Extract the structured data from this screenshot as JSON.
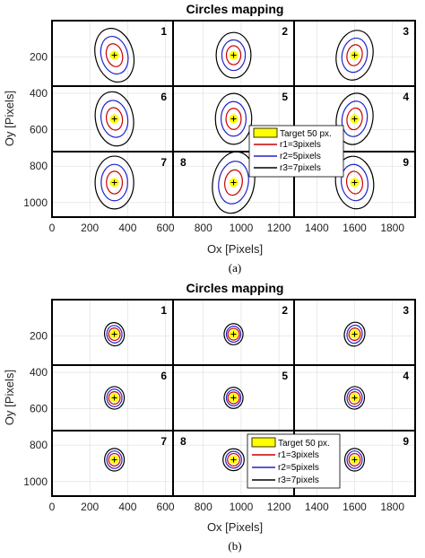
{
  "chart_data": [
    {
      "type": "scatter",
      "panel_label": "(a)",
      "title": "Circles mapping",
      "xlabel": "Ox [Pixels]",
      "ylabel": "Oy [Pixels]",
      "xlim": [
        0,
        1920
      ],
      "ylim": [
        1080,
        0
      ],
      "xticks": [
        "0",
        "200",
        "400",
        "600",
        "800",
        "1000",
        "1200",
        "1400",
        "1600",
        "1800"
      ],
      "yticks": [
        "200",
        "400",
        "600",
        "800",
        "1000"
      ],
      "grid": true,
      "grid_lines_x": [
        640,
        1280
      ],
      "grid_lines_y": [
        360,
        720
      ],
      "cell_labels": [
        "1",
        "2",
        "3",
        "6",
        "5",
        "4",
        "7",
        "8",
        "9"
      ],
      "legend": {
        "placement": "center-right",
        "entries": [
          {
            "name": "Target 50 px.",
            "color": "#ffff00",
            "kind": "fill"
          },
          {
            "name": "r1=3pixels",
            "color": "#cc0000",
            "kind": "line"
          },
          {
            "name": "r2=5pixels",
            "color": "#2222cc",
            "kind": "line"
          },
          {
            "name": "r3=7pixels",
            "color": "#000000",
            "kind": "line"
          }
        ]
      },
      "targets": [
        {
          "x": 330,
          "y": 190,
          "rx1": 42,
          "ry1": 64,
          "rx2": 70,
          "ry2": 105,
          "rx3": 100,
          "ry3": 150,
          "tilt": -15
        },
        {
          "x": 960,
          "y": 190,
          "rx1": 38,
          "ry1": 52,
          "rx2": 62,
          "ry2": 84,
          "rx3": 92,
          "ry3": 125,
          "tilt": 0
        },
        {
          "x": 1600,
          "y": 190,
          "rx1": 40,
          "ry1": 58,
          "rx2": 66,
          "ry2": 95,
          "rx3": 96,
          "ry3": 138,
          "tilt": 12
        },
        {
          "x": 330,
          "y": 540,
          "rx1": 42,
          "ry1": 62,
          "rx2": 70,
          "ry2": 102,
          "rx3": 100,
          "ry3": 150,
          "tilt": -10
        },
        {
          "x": 960,
          "y": 540,
          "rx1": 40,
          "ry1": 58,
          "rx2": 66,
          "ry2": 95,
          "rx3": 96,
          "ry3": 140,
          "tilt": 0
        },
        {
          "x": 1600,
          "y": 540,
          "rx1": 40,
          "ry1": 60,
          "rx2": 66,
          "ry2": 98,
          "rx3": 96,
          "ry3": 142,
          "tilt": 10
        },
        {
          "x": 330,
          "y": 890,
          "rx1": 42,
          "ry1": 62,
          "rx2": 70,
          "ry2": 100,
          "rx3": 102,
          "ry3": 145,
          "tilt": 0
        },
        {
          "x": 960,
          "y": 890,
          "rx1": 46,
          "ry1": 70,
          "rx2": 78,
          "ry2": 118,
          "rx3": 110,
          "ry3": 170,
          "tilt": 10
        },
        {
          "x": 1600,
          "y": 890,
          "rx1": 42,
          "ry1": 62,
          "rx2": 70,
          "ry2": 100,
          "rx3": 100,
          "ry3": 145,
          "tilt": -8
        }
      ]
    },
    {
      "type": "scatter",
      "panel_label": "(b)",
      "title": "Circles mapping",
      "xlabel": "Ox [Pixels]",
      "ylabel": "Oy [Pixels]",
      "xlim": [
        0,
        1920
      ],
      "ylim": [
        1080,
        0
      ],
      "xticks": [
        "0",
        "200",
        "400",
        "600",
        "800",
        "1000",
        "1200",
        "1400",
        "1600",
        "1800"
      ],
      "yticks": [
        "200",
        "400",
        "600",
        "800",
        "1000"
      ],
      "grid": true,
      "grid_lines_x": [
        640,
        1280
      ],
      "grid_lines_y": [
        360,
        720
      ],
      "cell_labels": [
        "1",
        "2",
        "3",
        "6",
        "5",
        "4",
        "7",
        "8",
        "9"
      ],
      "legend": {
        "placement": "bottom-center",
        "entries": [
          {
            "name": "Target 50 px.",
            "color": "#ffff00",
            "kind": "fill"
          },
          {
            "name": "r1=3pixels",
            "color": "#cc0000",
            "kind": "line"
          },
          {
            "name": "r2=5pixels",
            "color": "#2222cc",
            "kind": "line"
          },
          {
            "name": "r3=7pixels",
            "color": "#000000",
            "kind": "line"
          }
        ]
      },
      "targets": [
        {
          "x": 330,
          "y": 190,
          "rx1": 30,
          "ry1": 34,
          "rx2": 40,
          "ry2": 48,
          "rx3": 52,
          "ry3": 64,
          "tilt": -10
        },
        {
          "x": 960,
          "y": 190,
          "rx1": 30,
          "ry1": 32,
          "rx2": 38,
          "ry2": 44,
          "rx3": 50,
          "ry3": 58,
          "tilt": 0
        },
        {
          "x": 1600,
          "y": 190,
          "rx1": 30,
          "ry1": 34,
          "rx2": 40,
          "ry2": 50,
          "rx3": 54,
          "ry3": 66,
          "tilt": 12
        },
        {
          "x": 330,
          "y": 540,
          "rx1": 30,
          "ry1": 34,
          "rx2": 40,
          "ry2": 48,
          "rx3": 52,
          "ry3": 62,
          "tilt": 0
        },
        {
          "x": 960,
          "y": 540,
          "rx1": 30,
          "ry1": 32,
          "rx2": 38,
          "ry2": 44,
          "rx3": 50,
          "ry3": 58,
          "tilt": 0
        },
        {
          "x": 1600,
          "y": 540,
          "rx1": 30,
          "ry1": 34,
          "rx2": 40,
          "ry2": 48,
          "rx3": 52,
          "ry3": 62,
          "tilt": 8
        },
        {
          "x": 330,
          "y": 880,
          "rx1": 30,
          "ry1": 34,
          "rx2": 40,
          "ry2": 48,
          "rx3": 52,
          "ry3": 62,
          "tilt": 0
        },
        {
          "x": 960,
          "y": 880,
          "rx1": 32,
          "ry1": 34,
          "rx2": 42,
          "ry2": 46,
          "rx3": 56,
          "ry3": 60,
          "tilt": 0
        },
        {
          "x": 1600,
          "y": 880,
          "rx1": 30,
          "ry1": 34,
          "rx2": 40,
          "ry2": 48,
          "rx3": 52,
          "ry3": 62,
          "tilt": 0
        }
      ]
    }
  ]
}
